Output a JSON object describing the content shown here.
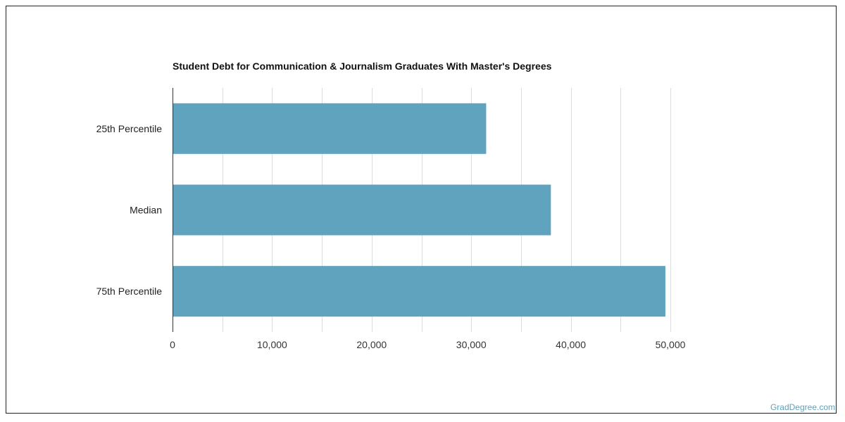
{
  "colors": {
    "bar": "#5fa3bf",
    "grid": "#dddddd",
    "axis": "#333333"
  },
  "credit": "GradDegree.com",
  "chart_data": {
    "type": "bar",
    "orientation": "horizontal",
    "title": "Student Debt for Communication & Journalism Graduates With Master's Degrees",
    "categories": [
      "25th Percentile",
      "Median",
      "75th Percentile"
    ],
    "values": [
      31500,
      38000,
      49500
    ],
    "xlim": [
      0,
      50000
    ],
    "xticks": [
      0,
      10000,
      20000,
      30000,
      40000,
      50000
    ],
    "xtick_labels": [
      "0",
      "10,000",
      "20,000",
      "30,000",
      "40,000",
      "50,000"
    ],
    "grid": true,
    "xlabel": "",
    "ylabel": ""
  }
}
